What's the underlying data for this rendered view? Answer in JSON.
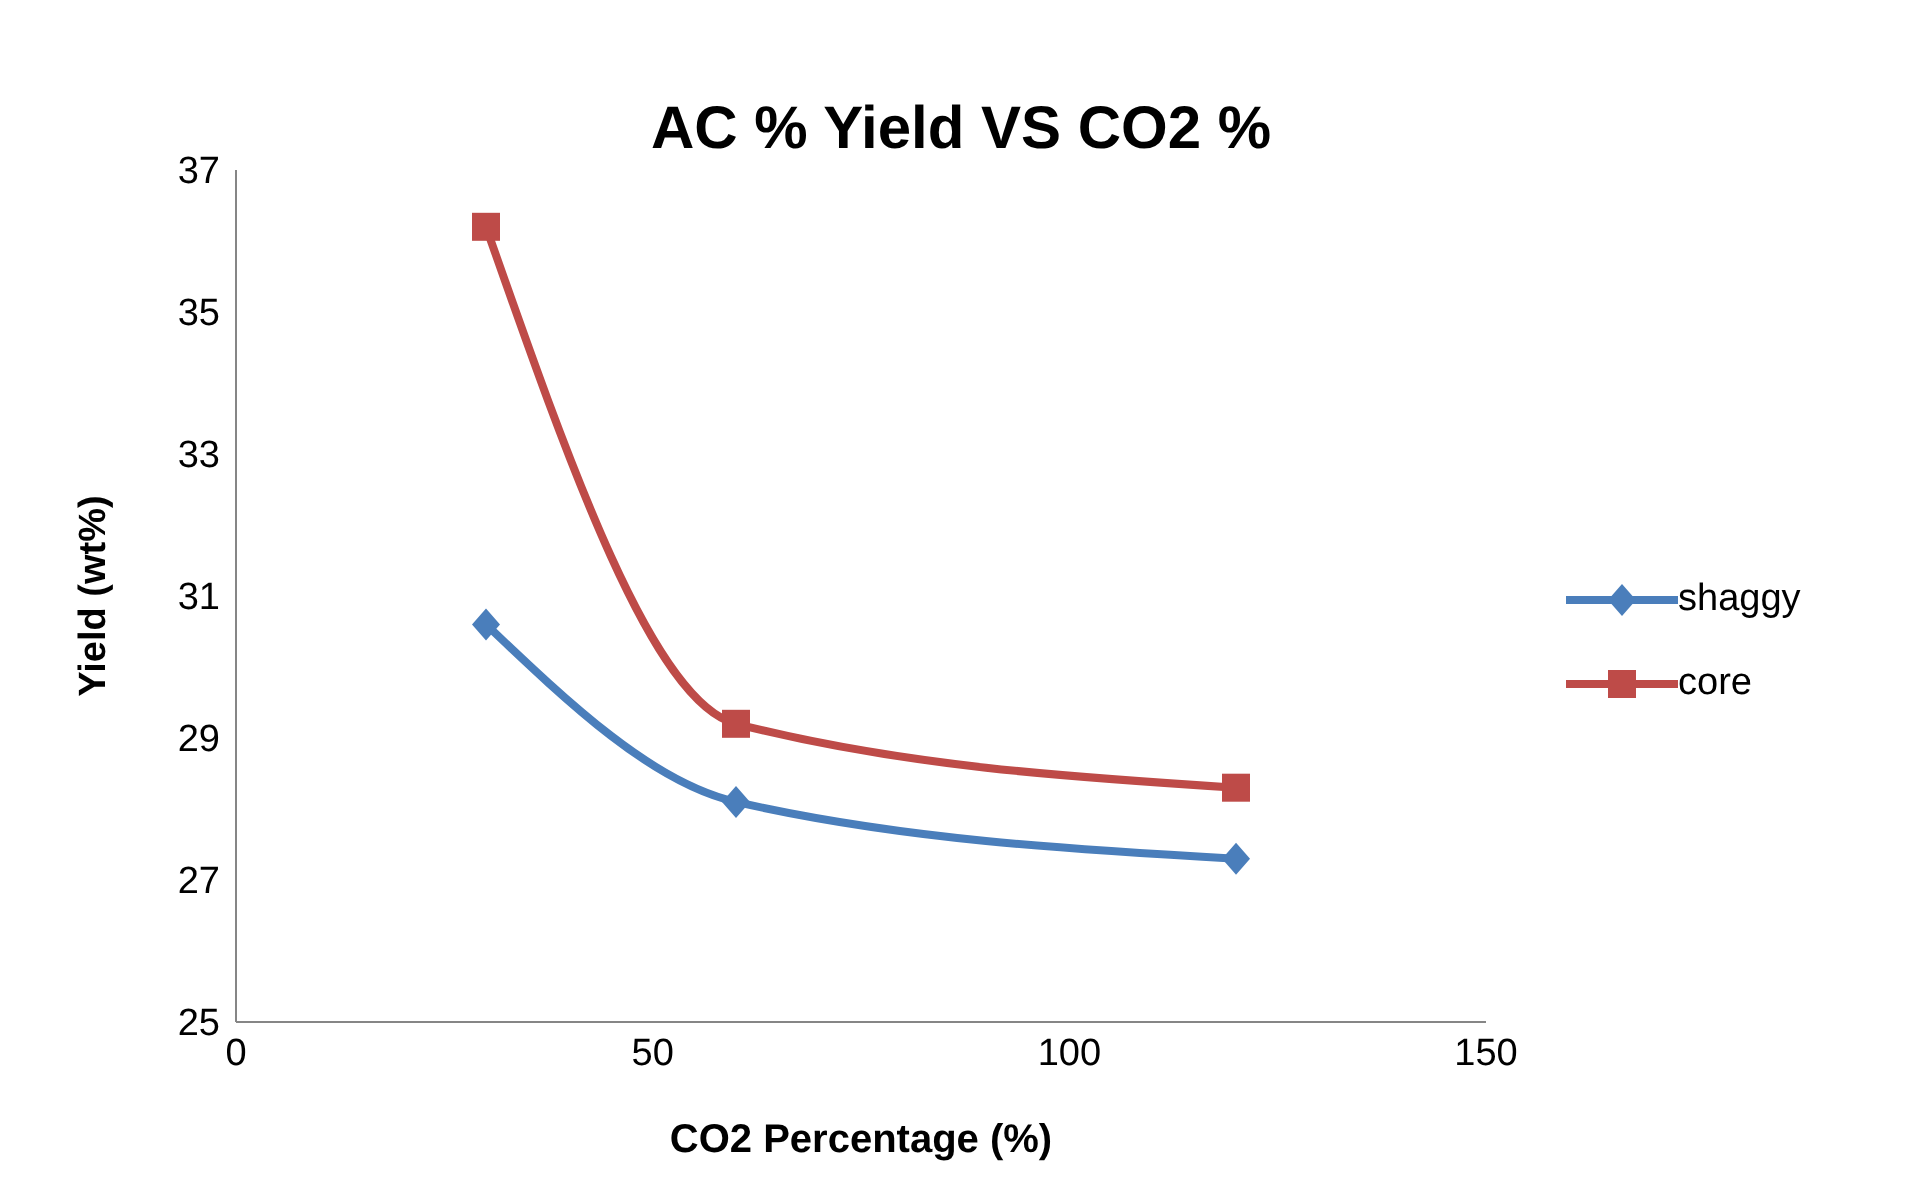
{
  "chart_data": {
    "type": "line",
    "title": "AC % Yield VS CO2 %",
    "xlabel": "CO2 Percentage (%)",
    "ylabel": "Yield (wt%)",
    "x": [
      30,
      60,
      120
    ],
    "series": [
      {
        "name": "shaggy",
        "color": "#4a7ebb",
        "marker": "diamond",
        "values": [
          30.6,
          28.1,
          27.3
        ]
      },
      {
        "name": "core",
        "color": "#be4b48",
        "marker": "square",
        "values": [
          36.2,
          29.2,
          28.3
        ]
      }
    ],
    "xlim": [
      0,
      150
    ],
    "xticks": [
      0,
      50,
      100,
      150
    ],
    "ylim": [
      25,
      37
    ],
    "yticks": [
      25,
      27,
      29,
      31,
      33,
      35,
      37
    ],
    "grid": false,
    "legend": "right"
  }
}
